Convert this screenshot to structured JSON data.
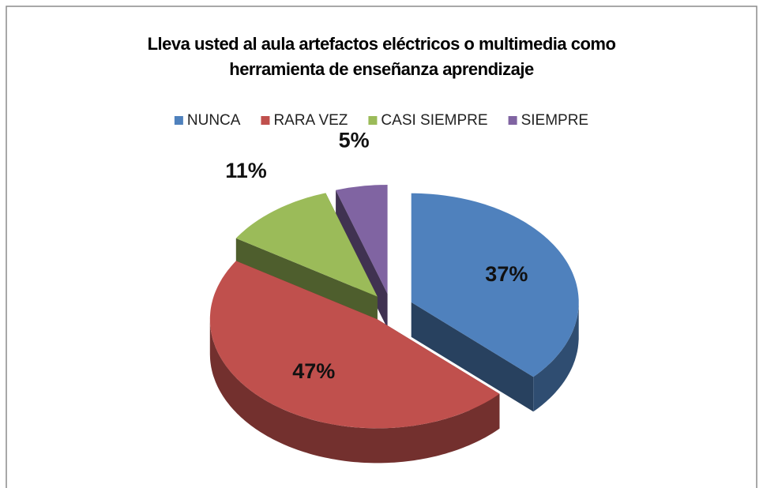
{
  "chart_data": {
    "type": "pie",
    "title": "Lleva usted al aula artefactos eléctricos o multimedia como herramienta de enseñanza aprendizaje",
    "categories": [
      "NUNCA",
      "RARA VEZ",
      "CASI SIEMPRE",
      "SIEMPRE"
    ],
    "values": [
      37,
      47,
      11,
      5
    ],
    "value_labels": [
      "37%",
      "47%",
      "11%",
      "5%"
    ],
    "colors": [
      "#4f81bd",
      "#c0504d",
      "#9bbb59",
      "#8064a2"
    ],
    "legend": "top"
  }
}
